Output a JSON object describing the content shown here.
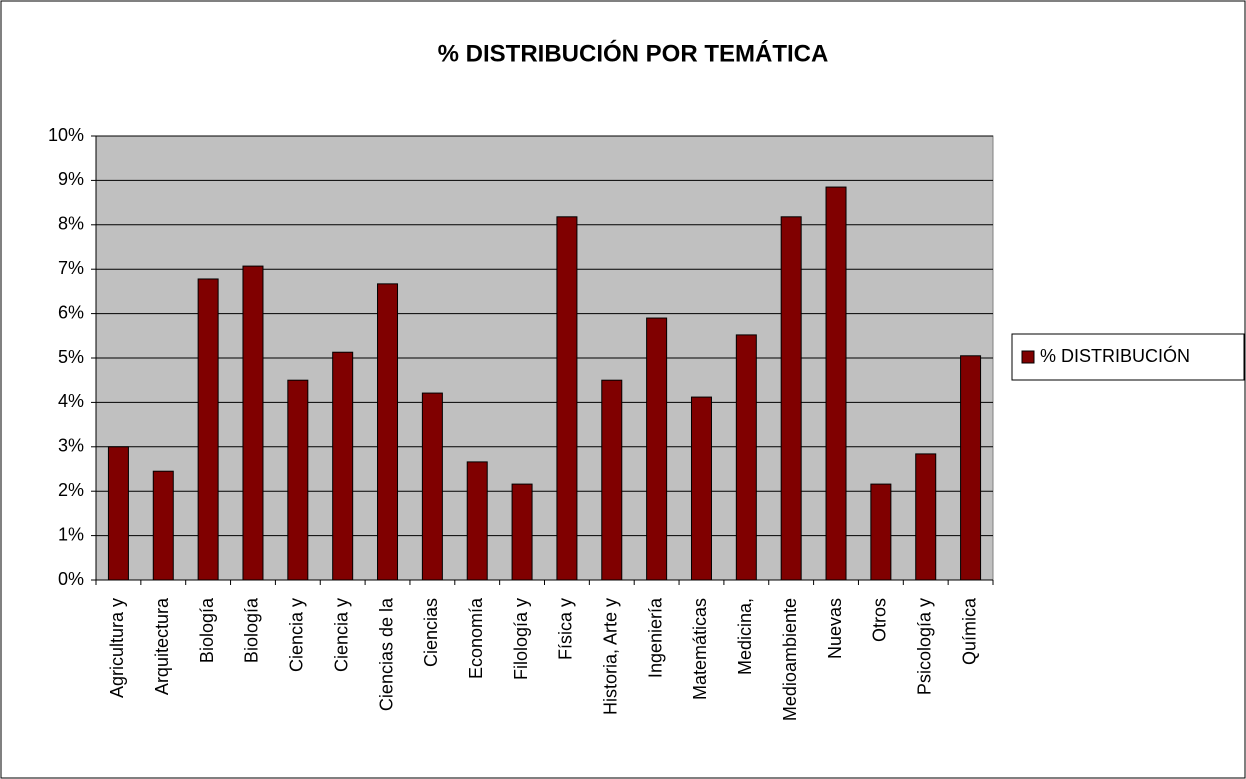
{
  "chart_data": {
    "type": "bar",
    "title": "% DISTRIBUCIÓN POR TEMÁTICA",
    "categories": [
      "Agricultura y",
      "Arquitectura",
      "Biología",
      "Biología",
      "Ciencia y",
      "Ciencia y",
      "Ciencias de la",
      "Ciencias",
      "Economía",
      "Filología y",
      "Física y",
      "Historia, Arte y",
      "Ingeniería",
      "Matemáticas",
      "Medicina,",
      "Medioambiente",
      "Nuevas",
      "Otros",
      "Psicología y",
      "Química"
    ],
    "series": [
      {
        "name": "% DISTRIBUCIÓN",
        "color": "#800000",
        "values": [
          3.0,
          2.45,
          6.78,
          7.07,
          4.5,
          5.13,
          6.67,
          4.21,
          2.66,
          2.16,
          8.18,
          4.5,
          5.9,
          4.12,
          5.52,
          8.18,
          8.85,
          2.16,
          2.84,
          5.05
        ]
      }
    ],
    "ylim": [
      0,
      10
    ],
    "yticks": [
      {
        "value": 0,
        "label": "0%"
      },
      {
        "value": 1,
        "label": "1%"
      },
      {
        "value": 2,
        "label": "2%"
      },
      {
        "value": 3,
        "label": "3%"
      },
      {
        "value": 4,
        "label": "4%"
      },
      {
        "value": 5,
        "label": "5%"
      },
      {
        "value": 6,
        "label": "6%"
      },
      {
        "value": 7,
        "label": "7%"
      },
      {
        "value": 8,
        "label": "8%"
      },
      {
        "value": 9,
        "label": "9%"
      },
      {
        "value": 10,
        "label": "10%"
      }
    ],
    "grid": true,
    "legend": "right"
  }
}
